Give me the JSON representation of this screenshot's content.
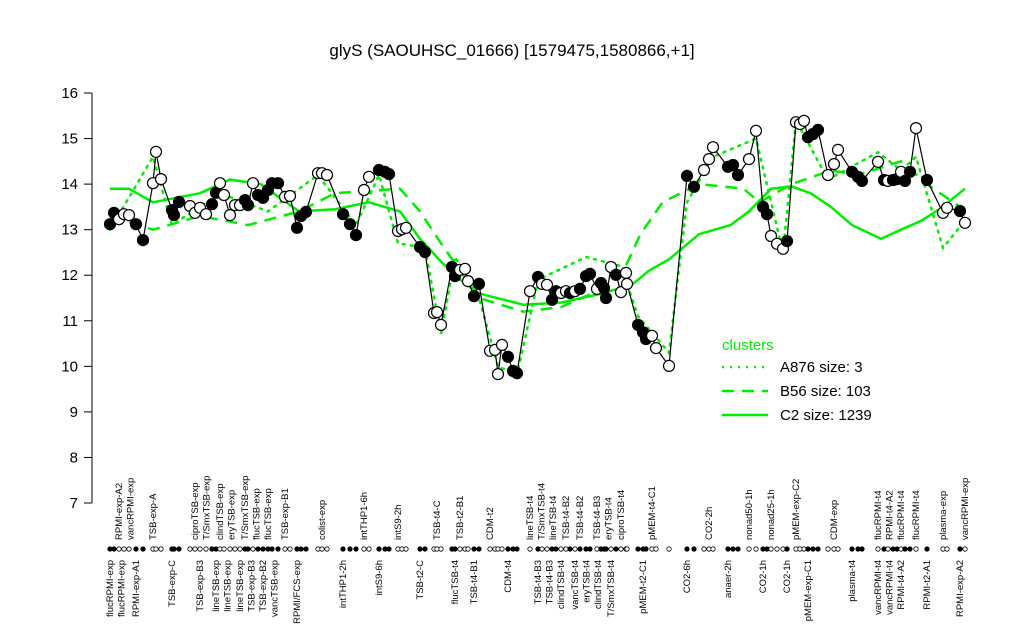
{
  "chart_data": {
    "type": "scatter",
    "title": "glyS (SAOUHSC_01666) [1579475,1580866,+1]",
    "xlabel": "",
    "ylabel": "",
    "ylim": [
      7,
      16
    ],
    "yticks": [
      "7",
      "8",
      "9",
      "10",
      "11",
      "12",
      "13",
      "14",
      "15",
      "16"
    ],
    "grid": false,
    "point_color": "#000000",
    "cluster_color": "#00ee00",
    "values": [
      13.12,
      13.37,
      13.23,
      13.34,
      13.32,
      13.12,
      12.77,
      14.02,
      14.71,
      14.11,
      13.43,
      13.32,
      13.61,
      13.52,
      13.37,
      13.48,
      13.34,
      13.56,
      13.81,
      14.02,
      13.76,
      13.32,
      13.54,
      13.54,
      13.65,
      13.54,
      14.02,
      13.76,
      13.7,
      13.87,
      14.02,
      14.02,
      13.72,
      13.74,
      13.04,
      13.3,
      13.39,
      14.24,
      14.24,
      14.2,
      13.34,
      13.12,
      12.88,
      13.87,
      14.16,
      14.31,
      14.27,
      14.22,
      12.97,
      13.01,
      13.04,
      12.62,
      12.51,
      11.17,
      11.19,
      10.91,
      12.18,
      11.98,
      12.12,
      12.14,
      11.87,
      11.54,
      11.81,
      10.34,
      10.36,
      9.83,
      10.47,
      10.21,
      9.9,
      9.85,
      11.65,
      11.96,
      11.81,
      11.79,
      11.46,
      11.65,
      11.61,
      11.65,
      11.61,
      11.65,
      11.7,
      11.98,
      12.03,
      11.7,
      11.83,
      11.72,
      11.5,
      12.18,
      12.01,
      11.63,
      12.05,
      11.81,
      10.91,
      10.75,
      10.6,
      10.67,
      10.4,
      10.01,
      14.18,
      13.94,
      14.31,
      14.55,
      14.81,
      14.38,
      14.42,
      14.2,
      14.55,
      15.17,
      13.5,
      13.34,
      12.86,
      12.69,
      12.58,
      12.75,
      15.36,
      15.32,
      15.39,
      15.03,
      15.1,
      15.19,
      14.2,
      14.44,
      14.75,
      14.27,
      14.16,
      14.07,
      14.49,
      14.09,
      14.07,
      14.09,
      14.11,
      14.27,
      14.07,
      14.27,
      15.23,
      14.09,
      13.37,
      13.48,
      13.41,
      13.15
    ],
    "filled": [
      1,
      1,
      0,
      0,
      0,
      1,
      1,
      0,
      0,
      0,
      1,
      1,
      1,
      0,
      0,
      0,
      0,
      1,
      1,
      0,
      0,
      0,
      0,
      0,
      1,
      1,
      0,
      1,
      1,
      1,
      1,
      1,
      0,
      0,
      1,
      1,
      1,
      0,
      0,
      0,
      1,
      1,
      1,
      0,
      0,
      1,
      1,
      1,
      0,
      0,
      0,
      1,
      1,
      0,
      0,
      0,
      1,
      1,
      0,
      0,
      0,
      1,
      1,
      0,
      0,
      0,
      0,
      1,
      1,
      1,
      0,
      1,
      0,
      0,
      1,
      1,
      0,
      0,
      1,
      0,
      1,
      1,
      1,
      0,
      1,
      1,
      1,
      0,
      1,
      0,
      0,
      0,
      1,
      1,
      1,
      0,
      0,
      0,
      1,
      1,
      0,
      0,
      0,
      1,
      1,
      1,
      0,
      0,
      1,
      1,
      0,
      0,
      0,
      1,
      0,
      0,
      0,
      1,
      1,
      1,
      0,
      0,
      0,
      1,
      1,
      1,
      0,
      1,
      0,
      1,
      1,
      0,
      1,
      1,
      0,
      1,
      0,
      0,
      1,
      0
    ],
    "top_labels": [
      {
        "i": 3,
        "text": "RPMI-exp-A2"
      },
      {
        "i": 5,
        "text": "vancRPMI-exp"
      },
      {
        "i": 8,
        "text": "TSB-exp-A"
      },
      {
        "i": 15,
        "text": "ciproTSB-exp"
      },
      {
        "i": 17,
        "text": "T/SmxTSB-exp"
      },
      {
        "i": 20,
        "text": "clindTSB-exp"
      },
      {
        "i": 22,
        "text": "eryTSB-exp"
      },
      {
        "i": 25,
        "text": "T/SmxTSB-exp"
      },
      {
        "i": 27,
        "text": "flucTSB-exp"
      },
      {
        "i": 30,
        "text": "flucTSB-exp"
      },
      {
        "i": 33,
        "text": "TSB-exp-B1"
      },
      {
        "i": 39,
        "text": "colist-exp"
      },
      {
        "i": 44,
        "text": "intTHP1-6h"
      },
      {
        "i": 49,
        "text": "intS9-2h"
      },
      {
        "i": 55,
        "text": "TSB-t4-C"
      },
      {
        "i": 59,
        "text": "TSB-t2-B1"
      },
      {
        "i": 64,
        "text": "CDM-t2"
      },
      {
        "i": 71,
        "text": "lineTSB-t4"
      },
      {
        "i": 72,
        "text": "T/SmxTSB-t4"
      },
      {
        "i": 75,
        "text": "lineTSB-t4"
      },
      {
        "i": 78,
        "text": "TSB-t4-B2"
      },
      {
        "i": 81,
        "text": "TSB-t4-B2"
      },
      {
        "i": 84,
        "text": "TSB-t4-B3"
      },
      {
        "i": 87,
        "text": "eryTSB-t4"
      },
      {
        "i": 90,
        "text": "ciproTSB-t4"
      },
      {
        "i": 96,
        "text": "pMEM-t4-C1"
      },
      {
        "i": 102,
        "text": "CO2-2h"
      },
      {
        "i": 107,
        "text": "nonad50-1h"
      },
      {
        "i": 111,
        "text": "nonad25-1h"
      },
      {
        "i": 115,
        "text": "pMEM-exp-C2"
      },
      {
        "i": 122,
        "text": "CDM-exp"
      },
      {
        "i": 127,
        "text": "flucRPMI-t4"
      },
      {
        "i": 128,
        "text": "RPMI-t4-A2"
      },
      {
        "i": 132,
        "text": "flucRPMI-t4"
      },
      {
        "i": 135,
        "text": "flucRPMI-t4"
      },
      {
        "i": 137,
        "text": "plasma-exp"
      },
      {
        "i": 140,
        "text": "vancRPMI-exp"
      }
    ],
    "bottom_labels": [
      {
        "i": 1,
        "text": "flucRPMI-exp"
      },
      {
        "i": 3,
        "text": "flucRPMI-exp"
      },
      {
        "i": 6,
        "text": "RPMI-exp-A1"
      },
      {
        "i": 11,
        "text": "TSB-exp-C"
      },
      {
        "i": 16,
        "text": "TSB-exp-B3"
      },
      {
        "i": 19,
        "text": "lineTSB-exp"
      },
      {
        "i": 21,
        "text": "lineTSB-exp"
      },
      {
        "i": 24,
        "text": "lineTSB-exp"
      },
      {
        "i": 25,
        "text": "TSB-exp-B3"
      },
      {
        "i": 27,
        "text": "TSB-exp-B2"
      },
      {
        "i": 30,
        "text": "vancTSB-exp"
      },
      {
        "i": 35,
        "text": "RPMI/FCS-exp"
      },
      {
        "i": 41,
        "text": "intTHP1-2h"
      },
      {
        "i": 46,
        "text": "intS9-6h"
      },
      {
        "i": 52,
        "text": "TSB-t2-C"
      },
      {
        "i": 58,
        "text": "flucTSB-t4"
      },
      {
        "i": 62,
        "text": "TSB-t4-B1"
      },
      {
        "i": 68,
        "text": "CDM-t4"
      },
      {
        "i": 72,
        "text": "TSB-t4-B3"
      },
      {
        "i": 74,
        "text": "TSB-t4-B3"
      },
      {
        "i": 77,
        "text": "clindTSB-t4"
      },
      {
        "i": 80,
        "text": "vancTSB-t4"
      },
      {
        "i": 82,
        "text": "eryTSB-t4"
      },
      {
        "i": 84,
        "text": "clindTSB-t4"
      },
      {
        "i": 88,
        "text": "T/SmxTSB-t4"
      },
      {
        "i": 94,
        "text": "pMEM-t2-C1"
      },
      {
        "i": 99,
        "text": "CO2-6h"
      },
      {
        "i": 104,
        "text": "anaer-2h"
      },
      {
        "i": 109,
        "text": "CO2-1h"
      },
      {
        "i": 114,
        "text": "CO2-1h"
      },
      {
        "i": 118,
        "text": "pMEM-exp-C1"
      },
      {
        "i": 124,
        "text": "plasma-t4"
      },
      {
        "i": 127,
        "text": "vancRPMI-t4"
      },
      {
        "i": 129,
        "text": "vancRPMI-t4"
      },
      {
        "i": 132,
        "text": "RPMI-t4-A2"
      },
      {
        "i": 136,
        "text": "RPMI-t2-A1"
      },
      {
        "i": 139,
        "text": "RPMI-exp-A2"
      }
    ],
    "clusters": [
      {
        "name": "A876 size: 3",
        "style": "dotted",
        "points": [
          [
            1,
            13.0
          ],
          [
            8,
            14.6
          ],
          [
            11,
            13.1
          ],
          [
            20,
            13.8
          ],
          [
            30,
            13.4
          ],
          [
            38,
            14.2
          ],
          [
            43,
            13.1
          ],
          [
            46,
            14.2
          ],
          [
            49,
            12.7
          ],
          [
            53,
            12.6
          ],
          [
            56,
            10.7
          ],
          [
            58,
            12.4
          ],
          [
            63,
            11.5
          ],
          [
            66,
            10.0
          ],
          [
            70,
            9.8
          ],
          [
            72,
            11.9
          ],
          [
            82,
            12.4
          ],
          [
            90,
            12.2
          ],
          [
            93,
            11.1
          ],
          [
            98,
            10.3
          ],
          [
            99,
            13.6
          ],
          [
            103,
            14.6
          ],
          [
            108,
            15.0
          ],
          [
            113,
            12.5
          ],
          [
            115,
            15.4
          ],
          [
            121,
            14.1
          ],
          [
            127,
            14.7
          ],
          [
            132,
            14.3
          ],
          [
            135,
            14.6
          ],
          [
            137,
            12.6
          ],
          [
            140,
            13.2
          ]
        ]
      },
      {
        "name": "B56 size: 103",
        "style": "dashed",
        "points": [
          [
            1,
            13.3
          ],
          [
            8,
            13.0
          ],
          [
            16,
            13.3
          ],
          [
            26,
            13.1
          ],
          [
            35.5,
            13.4
          ],
          [
            40.5,
            13.8
          ],
          [
            49.5,
            13.9
          ],
          [
            52,
            13.4
          ],
          [
            56,
            12.7
          ],
          [
            63,
            11.5
          ],
          [
            70.5,
            11.2
          ],
          [
            77,
            11.3
          ],
          [
            85.5,
            11.7
          ],
          [
            90.5,
            12.1
          ],
          [
            93.5,
            12.9
          ],
          [
            97.5,
            13.6
          ],
          [
            100.5,
            14.0
          ],
          [
            106.5,
            13.9
          ],
          [
            108.5,
            13.6
          ],
          [
            114.5,
            14.0
          ],
          [
            121.5,
            14.3
          ],
          [
            125,
            14.2
          ],
          [
            132,
            14.5
          ],
          [
            136,
            14.0
          ],
          [
            139,
            13.5
          ],
          [
            140,
            13.4
          ]
        ]
      },
      {
        "name": "C2 size: 1239",
        "style": "solid",
        "points": [
          [
            1,
            13.9
          ],
          [
            5,
            13.9
          ],
          [
            8,
            13.6
          ],
          [
            16,
            13.8
          ],
          [
            22,
            14.1
          ],
          [
            28.5,
            14.0
          ],
          [
            35.5,
            13.4
          ],
          [
            40.5,
            13.45
          ],
          [
            45,
            13.6
          ],
          [
            49.5,
            13.4
          ],
          [
            52,
            12.8
          ],
          [
            56,
            12.3
          ],
          [
            59,
            11.9
          ],
          [
            63,
            11.6
          ],
          [
            70.5,
            11.35
          ],
          [
            77,
            11.4
          ],
          [
            85.5,
            11.6
          ],
          [
            92.5,
            11.8
          ],
          [
            95.5,
            12.1
          ],
          [
            98,
            12.35
          ],
          [
            100.5,
            12.9
          ],
          [
            104.5,
            13.1
          ],
          [
            107,
            13.4
          ],
          [
            111,
            13.9
          ],
          [
            114.5,
            13.95
          ],
          [
            118.5,
            13.8
          ],
          [
            121.5,
            13.5
          ],
          [
            124,
            13.1
          ],
          [
            127.5,
            12.8
          ],
          [
            132,
            13.0
          ],
          [
            135.5,
            13.2
          ],
          [
            137,
            13.5
          ],
          [
            138.5,
            13.7
          ],
          [
            140,
            13.9
          ]
        ]
      }
    ],
    "legend": {
      "title": "clusters",
      "placement": "right"
    }
  }
}
